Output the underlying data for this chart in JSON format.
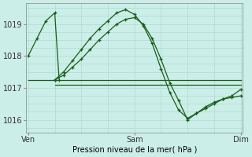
{
  "bg_color": "#cceee8",
  "grid_color": "#aaddcc",
  "line_color": "#1a5c1a",
  "xlabel": "Pression niveau de la mer( hPa )",
  "xtick_labels": [
    "Ven",
    "Sam",
    "Dim"
  ],
  "xtick_positions": [
    0,
    48,
    96
  ],
  "ytick_labels": [
    "1016",
    "1017",
    "1018",
    "1019"
  ],
  "ytick_positions": [
    1016,
    1017,
    1018,
    1019
  ],
  "ylim": [
    1015.6,
    1019.65
  ],
  "xlim": [
    -1,
    97
  ],
  "series": [
    {
      "x": [
        0,
        12,
        96
      ],
      "y": [
        1017.25,
        1017.25,
        1017.25
      ],
      "has_markers": false
    },
    {
      "x": [
        12,
        96
      ],
      "y": [
        1017.1,
        1017.1
      ],
      "has_markers": false
    },
    {
      "x": [
        0,
        4,
        8,
        12,
        14
      ],
      "y": [
        1018.0,
        1018.55,
        1019.1,
        1019.35,
        1017.25
      ],
      "has_markers": true
    },
    {
      "x": [
        12,
        16,
        20,
        24,
        28,
        32,
        36,
        40,
        44,
        48,
        52,
        56,
        60,
        64,
        68,
        72,
        76,
        80,
        84,
        88,
        92,
        96
      ],
      "y": [
        1017.25,
        1017.5,
        1017.85,
        1018.2,
        1018.55,
        1018.85,
        1019.1,
        1019.35,
        1019.45,
        1019.3,
        1018.95,
        1018.4,
        1017.6,
        1016.85,
        1016.3,
        1016.05,
        1016.2,
        1016.35,
        1016.5,
        1016.65,
        1016.7,
        1016.75
      ],
      "has_markers": true
    },
    {
      "x": [
        12,
        16,
        20,
        24,
        28,
        32,
        36,
        40,
        44,
        48,
        52,
        56,
        60,
        64,
        68,
        72,
        76,
        80,
        84,
        88,
        92,
        96
      ],
      "y": [
        1017.25,
        1017.4,
        1017.65,
        1017.9,
        1018.2,
        1018.5,
        1018.75,
        1019.0,
        1019.15,
        1019.2,
        1019.0,
        1018.55,
        1017.9,
        1017.15,
        1016.6,
        1016.0,
        1016.2,
        1016.4,
        1016.55,
        1016.65,
        1016.75,
        1016.95
      ],
      "has_markers": true
    }
  ]
}
